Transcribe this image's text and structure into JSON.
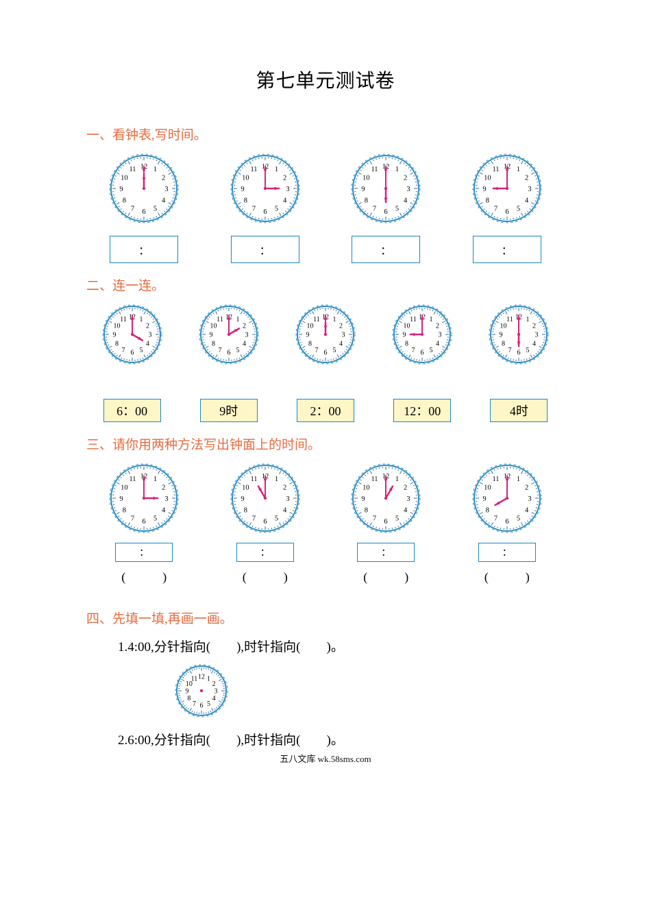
{
  "title": "第七单元测试卷",
  "footer": "五八文库 wk.58sms.com",
  "colors": {
    "heading": "#e86b3e",
    "border_blue": "#1788c2",
    "yellow_bg": "#fff6c8",
    "clock_outer": "#2b8cc4",
    "clock_tick": "#2b6fa0",
    "hand": "#d6227e",
    "text": "#000000"
  },
  "clock_style": {
    "type": "analog",
    "radius_large": 48,
    "radius_small": 41,
    "radius_xsmall": 36,
    "outer_stroke_width": 2,
    "tick_stroke_width": 1,
    "hand_width": 2,
    "numeral_fontsize_lg": 10.5,
    "numeral_fontsize_sm": 10,
    "numerals": [
      "12",
      "1",
      "2",
      "3",
      "4",
      "5",
      "6",
      "7",
      "8",
      "9",
      "10",
      "11"
    ]
  },
  "sections": {
    "s1": {
      "heading": "一、看钟表,写时间。",
      "clocks": [
        {
          "h": 12,
          "m": 0,
          "has_hands": true
        },
        {
          "h": 3,
          "m": 0,
          "has_hands": true
        },
        {
          "h": 6,
          "m": 0,
          "has_hands": true
        },
        {
          "h": 9,
          "m": 0,
          "has_hands": true
        }
      ],
      "answer_placeholder": "："
    },
    "s2": {
      "heading": "二、连一连。",
      "clocks": [
        {
          "h": 4,
          "m": 0,
          "has_hands": true
        },
        {
          "h": 2,
          "m": 0,
          "has_hands": true
        },
        {
          "h": 12,
          "m": 0,
          "has_hands": true
        },
        {
          "h": 9,
          "m": 0,
          "has_hands": true
        },
        {
          "h": 6,
          "m": 0,
          "has_hands": true
        }
      ],
      "labels": [
        "6：00",
        "9时",
        "2：00",
        "12：00",
        "4时"
      ]
    },
    "s3": {
      "heading": "三、请你用两种方法写出钟面上的时间。",
      "clocks": [
        {
          "h": 3,
          "m": 0,
          "has_hands": true
        },
        {
          "h": 11,
          "m": 0,
          "has_hands": true
        },
        {
          "h": 1,
          "m": 0,
          "has_hands": true
        },
        {
          "h": 8,
          "m": 0,
          "has_hands": true
        }
      ],
      "answer_placeholder": "：",
      "paren": "(　　　)"
    },
    "s4": {
      "heading": "四、先填一填,再画一画。",
      "lines": {
        "l1": "1.4:00,分针指向(　　),时针指向(　　)。",
        "l2": "2.6:00,分针指向(　　),时针指向(　　)。"
      },
      "clock1": {
        "has_hands": false
      }
    }
  }
}
